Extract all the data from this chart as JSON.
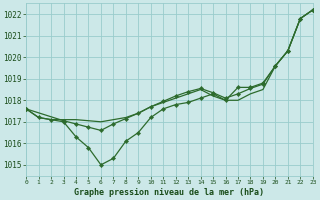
{
  "background_color": "#cce8e8",
  "plot_bg_color": "#cce8e8",
  "grid_color": "#99cccc",
  "line_color": "#2d6b2d",
  "marker_color": "#2d6b2d",
  "title": "Graphe pression niveau de la mer (hPa)",
  "title_color": "#1a4d1a",
  "xlim": [
    0,
    23
  ],
  "ylim": [
    1014.5,
    1022.5
  ],
  "yticks": [
    1015,
    1016,
    1017,
    1018,
    1019,
    1020,
    1021,
    1022
  ],
  "xticks": [
    0,
    1,
    2,
    3,
    4,
    5,
    6,
    7,
    8,
    9,
    10,
    11,
    12,
    13,
    14,
    15,
    16,
    17,
    18,
    19,
    20,
    21,
    22,
    23
  ],
  "line1_x": [
    0,
    1,
    2,
    3,
    4,
    5,
    6,
    7,
    8,
    9,
    10,
    11,
    12,
    13,
    14,
    15,
    16,
    17,
    18,
    19,
    20,
    21,
    22,
    23
  ],
  "line1_y": [
    1017.6,
    1017.2,
    1017.1,
    1017.1,
    1017.1,
    1017.05,
    1017.0,
    1017.1,
    1017.2,
    1017.4,
    1017.7,
    1017.9,
    1018.1,
    1018.3,
    1018.5,
    1018.2,
    1018.0,
    1018.0,
    1018.3,
    1018.5,
    1019.6,
    1020.3,
    1021.8,
    1022.2
  ],
  "line2_x": [
    0,
    1,
    2,
    3,
    4,
    5,
    6,
    7,
    8,
    9,
    10,
    11,
    12,
    13,
    14,
    15,
    16,
    17,
    18,
    19,
    20,
    21,
    22,
    23
  ],
  "line2_y": [
    1017.6,
    1017.2,
    1017.1,
    1017.0,
    1016.3,
    1015.8,
    1015.0,
    1015.3,
    1016.1,
    1016.5,
    1017.2,
    1017.6,
    1017.8,
    1017.9,
    1018.1,
    1018.3,
    1018.0,
    1018.6,
    1018.6,
    1018.8,
    1019.6,
    1020.3,
    1021.8,
    1022.2
  ],
  "line3_x": [
    0,
    3,
    4,
    5,
    6,
    7,
    8,
    9,
    10,
    11,
    12,
    13,
    14,
    15,
    16,
    17,
    18,
    19,
    20,
    21,
    22,
    23
  ],
  "line3_y": [
    1017.6,
    1017.05,
    1016.9,
    1016.75,
    1016.6,
    1016.9,
    1017.15,
    1017.4,
    1017.7,
    1017.95,
    1018.2,
    1018.4,
    1018.55,
    1018.35,
    1018.1,
    1018.3,
    1018.55,
    1018.75,
    1019.6,
    1020.3,
    1021.8,
    1022.2
  ],
  "ytick_fontsize": 5.5,
  "xtick_fontsize": 4.5,
  "title_fontsize": 6.0
}
